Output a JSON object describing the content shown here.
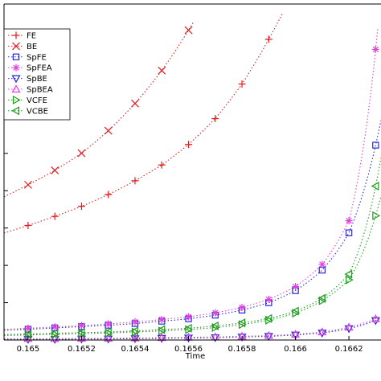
{
  "chart_data": {
    "type": "line",
    "xlabel": "Time",
    "xlim": [
      0.16491,
      0.16632
    ],
    "ylim": [
      0,
      1
    ],
    "x_ticks": [
      "0.165",
      "0.1652",
      "0.1654",
      "0.1656",
      "0.1658",
      "0.166",
      "0.1662"
    ],
    "x_tick_values": [
      0.165,
      0.1652,
      0.1654,
      0.1656,
      0.1658,
      0.166,
      0.1662
    ],
    "grid": false,
    "legend_position": "top-left",
    "series": [
      {
        "name": "FE",
        "marker": "plus",
        "color": "#e31a1c",
        "x": [
          0.165,
          0.1651,
          0.1652,
          0.1653,
          0.1654,
          0.1655,
          0.1656,
          0.1657,
          0.1658,
          0.1659
        ],
        "y": [
          0.341,
          0.368,
          0.398,
          0.433,
          0.474,
          0.521,
          0.582,
          0.659,
          0.762,
          0.895
        ],
        "curve_x": [
          0.16491,
          0.16595
        ],
        "curve_y": [
          0.316,
          1.0
        ]
      },
      {
        "name": "BE",
        "marker": "x",
        "color": "#e31a1c",
        "x": [
          0.165,
          0.1651,
          0.1652,
          0.1653,
          0.1654,
          0.1655,
          0.1656
        ],
        "y": [
          0.462,
          0.505,
          0.556,
          0.623,
          0.704,
          0.802,
          0.922
        ],
        "curve_x": [
          0.16491,
          0.16562
        ],
        "curve_y": [
          0.437,
          0.97
        ]
      },
      {
        "name": "SpFE",
        "marker": "square",
        "color": "#2727d8",
        "x": [
          0.165,
          0.1651,
          0.1652,
          0.1653,
          0.1654,
          0.1655,
          0.1656,
          0.1657,
          0.1658,
          0.1659,
          0.166,
          0.1661,
          0.1662,
          0.1663
        ],
        "y": [
          0.032,
          0.036,
          0.04,
          0.044,
          0.049,
          0.056,
          0.063,
          0.074,
          0.089,
          0.111,
          0.147,
          0.208,
          0.319,
          0.58
        ]
      },
      {
        "name": "SpFEA",
        "marker": "star",
        "color": "#e040e0",
        "x": [
          0.165,
          0.1651,
          0.1652,
          0.1653,
          0.1654,
          0.1655,
          0.1656,
          0.1657,
          0.1658,
          0.1659,
          0.166,
          0.1661,
          0.1662,
          0.1663
        ],
        "y": [
          0.035,
          0.039,
          0.043,
          0.048,
          0.054,
          0.061,
          0.069,
          0.081,
          0.097,
          0.121,
          0.159,
          0.225,
          0.355,
          0.865
        ]
      },
      {
        "name": "SpBE",
        "marker": "triangle-down",
        "color": "#2727d8",
        "x": [
          0.165,
          0.1651,
          0.1652,
          0.1653,
          0.1654,
          0.1655,
          0.1656,
          0.1657,
          0.1658,
          0.1659,
          0.166,
          0.1661,
          0.1662,
          0.1663
        ],
        "y": [
          0.002,
          0.002,
          0.003,
          0.003,
          0.004,
          0.005,
          0.006,
          0.007,
          0.009,
          0.011,
          0.015,
          0.021,
          0.034,
          0.058
        ]
      },
      {
        "name": "SpBEA",
        "marker": "triangle-up",
        "color": "#e040e0",
        "x": [
          0.165,
          0.1651,
          0.1652,
          0.1653,
          0.1654,
          0.1655,
          0.1656,
          0.1657,
          0.1658,
          0.1659,
          0.166,
          0.1661,
          0.1662,
          0.1663
        ],
        "y": [
          0.004,
          0.004,
          0.005,
          0.005,
          0.006,
          0.007,
          0.008,
          0.009,
          0.011,
          0.013,
          0.017,
          0.024,
          0.038,
          0.063
        ]
      },
      {
        "name": "VCFE",
        "marker": "triangle-right",
        "color": "#1f9d1f",
        "x": [
          0.165,
          0.1651,
          0.1652,
          0.1653,
          0.1654,
          0.1655,
          0.1656,
          0.1657,
          0.1658,
          0.1659,
          0.166,
          0.1661,
          0.1662,
          0.1663
        ],
        "y": [
          0.015,
          0.017,
          0.019,
          0.021,
          0.024,
          0.027,
          0.031,
          0.037,
          0.046,
          0.059,
          0.08,
          0.117,
          0.179,
          0.37
        ]
      },
      {
        "name": "VCBE",
        "marker": "triangle-left",
        "color": "#1f9d1f",
        "x": [
          0.165,
          0.1651,
          0.1652,
          0.1653,
          0.1654,
          0.1655,
          0.1656,
          0.1657,
          0.1658,
          0.1659,
          0.166,
          0.1661,
          0.1662,
          0.1663
        ],
        "y": [
          0.018,
          0.02,
          0.022,
          0.024,
          0.027,
          0.031,
          0.035,
          0.042,
          0.051,
          0.064,
          0.086,
          0.124,
          0.196,
          0.458
        ]
      }
    ]
  }
}
